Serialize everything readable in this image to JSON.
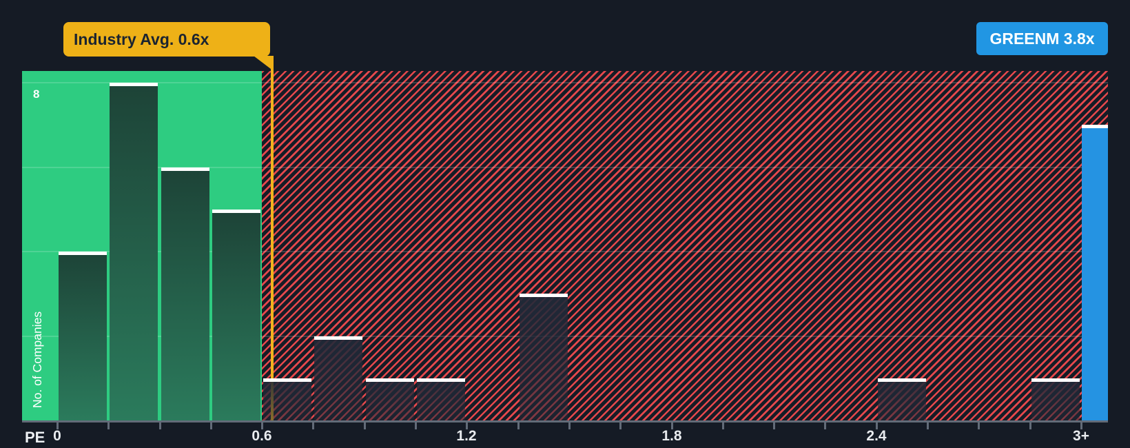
{
  "badges": {
    "industry": "Industry Avg. 0.6x",
    "company": "GREENM 3.8x"
  },
  "axes": {
    "x_label": "PE",
    "y_label": "No. of Companies",
    "y_top_tick_label": "8",
    "x_ticks": [
      {
        "value": 0,
        "label": "0"
      },
      {
        "value": 0.6,
        "label": "0.6"
      },
      {
        "value": 1.2,
        "label": "1.2"
      },
      {
        "value": 1.8,
        "label": "1.8"
      },
      {
        "value": 2.4,
        "label": "2.4"
      },
      {
        "value": 3,
        "label": "3+"
      }
    ]
  },
  "chart_data": {
    "type": "bar",
    "subtype": "histogram",
    "title": "PE ratio distribution of companies vs industry average",
    "xlabel": "PE",
    "ylabel": "No. of Companies",
    "xlim": [
      -0.103,
      3.079
    ],
    "ylim": [
      0,
      8.28
    ],
    "bin_width": 0.15,
    "minor_tick_step": 0.15,
    "y_gridlines": [
      2,
      4,
      6,
      8
    ],
    "y_labeled_gridline": 8,
    "grid": true,
    "bars": [
      {
        "x0": 0.0,
        "x1": 0.15,
        "value": 4,
        "zone": "below_industry_avg"
      },
      {
        "x0": 0.15,
        "x1": 0.3,
        "value": 8,
        "zone": "below_industry_avg"
      },
      {
        "x0": 0.3,
        "x1": 0.45,
        "value": 6,
        "zone": "below_industry_avg"
      },
      {
        "x0": 0.45,
        "x1": 0.6,
        "value": 5,
        "zone": "below_industry_avg"
      },
      {
        "x0": 0.6,
        "x1": 0.75,
        "value": 1,
        "zone": "above_industry_avg"
      },
      {
        "x0": 0.75,
        "x1": 0.9,
        "value": 2,
        "zone": "above_industry_avg"
      },
      {
        "x0": 0.9,
        "x1": 1.05,
        "value": 1,
        "zone": "above_industry_avg"
      },
      {
        "x0": 1.05,
        "x1": 1.2,
        "value": 1,
        "zone": "above_industry_avg"
      },
      {
        "x0": 1.35,
        "x1": 1.5,
        "value": 3,
        "zone": "above_industry_avg"
      },
      {
        "x0": 2.4,
        "x1": 2.55,
        "value": 1,
        "zone": "above_industry_avg"
      },
      {
        "x0": 2.85,
        "x1": 3.0,
        "value": 1,
        "zone": "above_industry_avg"
      }
    ],
    "company_bar": {
      "ticker": "GREENM",
      "pe": 3.8,
      "x0": 3.0,
      "x1": 3.079,
      "bar_top_value": 7,
      "label": "GREENM 3.8x"
    },
    "industry_avg": {
      "value": 0.6,
      "label": "Industry Avg. 0.6x",
      "line_x": 0.63
    },
    "zones": {
      "below_industry_avg_fill": "green",
      "above_industry_avg_fill": "red-hatched"
    }
  },
  "colors": {
    "background": "#151b25",
    "green_zone": "#2ecc81",
    "hatch_bg": "#161c26",
    "hatch_stripe": "#f14a4e",
    "green_bar_top": "#1d4337",
    "green_bar_bottom": "#2b7b5c",
    "red_bar_fill": "#212938",
    "bar_top_line": "#ffffff",
    "industry_badge": "#eeb117",
    "industry_line": "#f1b31d",
    "company_badge": "#2196e3",
    "company_bar": "#2593e2",
    "axis": "#626b78",
    "tick_text": "#e9ecef",
    "badge_text_dark": "#1b2430"
  }
}
